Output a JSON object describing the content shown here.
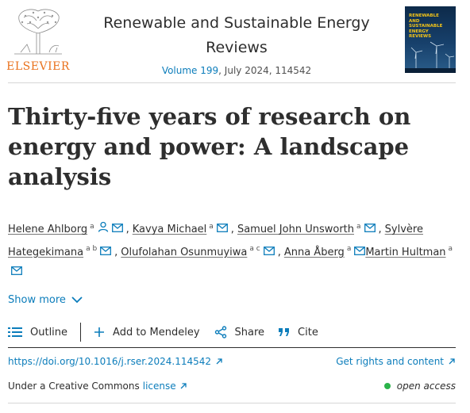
{
  "header": {
    "publisher_logo_text": "ELSEVIER",
    "journal_title": "Renewable and Sustainable Energy Reviews",
    "volume_link": "Volume 199",
    "issue_info": ", July 2024, 114542",
    "cover_text": "RENEWABLE AND SUSTAINABLE ENERGY REVIEWS"
  },
  "article": {
    "title": "Thirty-five years of research on energy and power: A landscape analysis"
  },
  "authors": [
    {
      "name": "Helene Ahlborg",
      "aff": "a",
      "person_icon": true,
      "separator": ""
    },
    {
      "name": "Kavya Michael",
      "aff": "a",
      "person_icon": false,
      "separator": ","
    },
    {
      "name": "Samuel John Unsworth",
      "aff": "a",
      "person_icon": false,
      "separator": ","
    },
    {
      "name": "Sylvère Hategekimana",
      "aff": "a b",
      "person_icon": false,
      "separator": ","
    },
    {
      "name": "Olufolahan Osunmuyiwa",
      "aff": "a c",
      "person_icon": false,
      "separator": ","
    },
    {
      "name": "Anna Åberg",
      "aff": "a",
      "person_icon": false,
      "separator": ","
    },
    {
      "name": "Martin Hultman",
      "aff": "a",
      "person_icon": false,
      "separator": ""
    }
  ],
  "show_more": "Show more",
  "toolbar": {
    "outline": "Outline",
    "mendeley": "Add to Mendeley",
    "share": "Share",
    "cite": "Cite"
  },
  "links": {
    "doi": "https://doi.org/10.1016/j.rser.2024.114542",
    "rights": "Get rights and content"
  },
  "license": {
    "prefix": "Under a Creative Commons",
    "link": "license",
    "open_access": "open access"
  },
  "colors": {
    "link": "#0c7dbb",
    "elsevier_orange": "#e9711c",
    "open_access_dot": "#2bb34a"
  }
}
